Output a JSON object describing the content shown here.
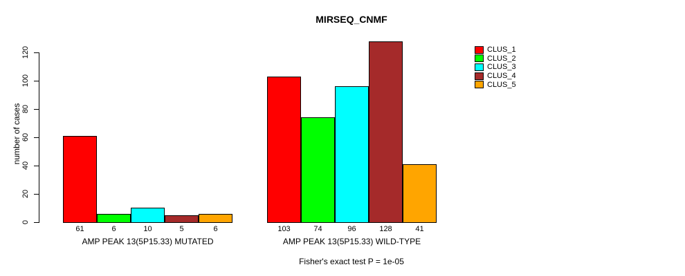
{
  "chart_data": {
    "type": "bar",
    "title": "MIRSEQ_CNMF",
    "ylabel": "number of cases",
    "xlabel": "",
    "ylim": [
      0,
      120
    ],
    "yticks": [
      0,
      20,
      40,
      60,
      80,
      100,
      120
    ],
    "grid": false,
    "legend_position": "right",
    "bar_value_labels_shown": true,
    "series": [
      "CLUS_1",
      "CLUS_2",
      "CLUS_3",
      "CLUS_4",
      "CLUS_5"
    ],
    "series_colors": [
      "#ff0000",
      "#00ff00",
      "#00ffff",
      "#a52a2a",
      "#ffa500"
    ],
    "bar_border_color": "#000000",
    "groups": [
      {
        "label": "AMP PEAK 13(5P15.33) MUTATED",
        "values": [
          61,
          6,
          10,
          5,
          6
        ]
      },
      {
        "label": "AMP PEAK 13(5P15.33) WILD-TYPE",
        "values": [
          103,
          74,
          96,
          128,
          41
        ]
      }
    ],
    "annotation": "Fisher's exact test P = 1e-05"
  },
  "legend": {
    "items": [
      {
        "label": "CLUS_1",
        "color": "#ff0000"
      },
      {
        "label": "CLUS_2",
        "color": "#00ff00"
      },
      {
        "label": "CLUS_3",
        "color": "#00ffff"
      },
      {
        "label": "CLUS_4",
        "color": "#a52a2a"
      },
      {
        "label": "CLUS_5",
        "color": "#ffa500"
      }
    ]
  }
}
